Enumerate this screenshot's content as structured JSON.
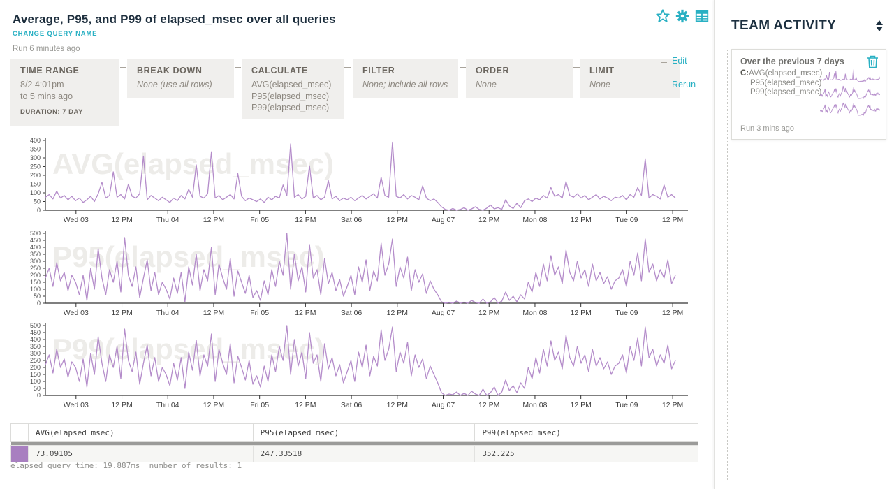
{
  "header": {
    "title": "Average, P95, and P99 of elapsed_msec over all queries",
    "change_query_name": "CHANGE QUERY NAME",
    "run_ago": "Run 6 minutes ago",
    "edit": "Edit",
    "rerun": "Rerun"
  },
  "toolbar": {
    "blocks": [
      {
        "label": "TIME RANGE",
        "lines": [
          "8/2 4:01pm",
          "to 5 mins ago"
        ],
        "footnote": "DURATION: 7 DAY",
        "italic": false
      },
      {
        "label": "BREAK DOWN",
        "lines": [
          "None (use all rows)"
        ],
        "italic": true
      },
      {
        "label": "CALCULATE",
        "lines": [
          "AVG(elapsed_msec)",
          "P95(elapsed_msec)",
          "P99(elapsed_msec)"
        ],
        "italic": false
      },
      {
        "label": "FILTER",
        "lines": [
          "None; include all rows"
        ],
        "italic": true
      },
      {
        "label": "ORDER",
        "lines": [
          "None"
        ],
        "italic": true
      },
      {
        "label": "LIMIT",
        "lines": [
          "None"
        ],
        "italic": true
      }
    ]
  },
  "sidebar": {
    "title": "TEAM ACTIVITY",
    "card": {
      "title": "Over the previous 7 days",
      "calc_prefix": "C:",
      "calc_lines": [
        "AVG(elapsed_msec)",
        "P95(elapsed_msec)",
        "P99(elapsed_msec)"
      ],
      "run_ago": "Run 3 mins ago"
    }
  },
  "table": {
    "columns": [
      "AVG(elapsed_msec)",
      "P95(elapsed_msec)",
      "P99(elapsed_msec)"
    ],
    "rows": [
      {
        "swatch_color": "#a87fc0",
        "values": [
          "73.09105",
          "247.33518",
          "352.225"
        ]
      }
    ]
  },
  "status_line": "elapsed query time: 19.887ms  number of results: 1",
  "colors": {
    "accent_teal": "#29b0c3",
    "title_navy": "#1d3040",
    "series_purple": "#b48cca",
    "watermark_gray": "#edece9",
    "swatch_purple": "#a87fc0"
  },
  "chart_data": {
    "type": "line",
    "x_start_label": "8/2 4:01pm",
    "x_total_hours": 168,
    "x_tick_hours": [
      8,
      20,
      32,
      44,
      56,
      68,
      80,
      92,
      104,
      116,
      128,
      140,
      152,
      164
    ],
    "x_tick_labels": [
      "Wed 03",
      "12 PM",
      "Thu 04",
      "12 PM",
      "Fri 05",
      "12 PM",
      "Sat 06",
      "12 PM",
      "Aug 07",
      "12 PM",
      "Mon 08",
      "12 PM",
      "Tue 09",
      "12 PM"
    ],
    "grid": false,
    "legend": "none",
    "series_color": "#b48cca",
    "charts": [
      {
        "watermark": "AVG(elapsed_msec)",
        "name": "AVG(elapsed_msec)",
        "ylim": [
          0,
          400
        ],
        "ystep": 50,
        "values": [
          75,
          90,
          65,
          110,
          70,
          85,
          60,
          80,
          55,
          70,
          45,
          60,
          80,
          50,
          95,
          160,
          70,
          85,
          220,
          75,
          90,
          65,
          150,
          80,
          70,
          95,
          310,
          60,
          85,
          70,
          55,
          75,
          60,
          45,
          70,
          55,
          85,
          65,
          120,
          75,
          260,
          80,
          70,
          95,
          335,
          70,
          85,
          60,
          75,
          90,
          65,
          210,
          80,
          55,
          70,
          60,
          50,
          65,
          45,
          75,
          60,
          80,
          70,
          145,
          85,
          380,
          75,
          90,
          65,
          80,
          255,
          70,
          85,
          60,
          75,
          170,
          65,
          80,
          55,
          70,
          60,
          75,
          55,
          70,
          85,
          65,
          80,
          95,
          70,
          190,
          85,
          75,
          390,
          80,
          70,
          90,
          65,
          85,
          75,
          60,
          140,
          70,
          55,
          65,
          45,
          20,
          5,
          0,
          10,
          0,
          5,
          15,
          0,
          8,
          20,
          5,
          0,
          12,
          30,
          8,
          15,
          5,
          60,
          25,
          10,
          40,
          15,
          55,
          65,
          50,
          70,
          60,
          85,
          70,
          130,
          80,
          90,
          70,
          165,
          85,
          75,
          95,
          70,
          85,
          60,
          75,
          90,
          65,
          80,
          70,
          55,
          75,
          70,
          85,
          60,
          90,
          75,
          130,
          85,
          295,
          70,
          90,
          80,
          65,
          145,
          75,
          90,
          70
        ]
      },
      {
        "watermark": "P95(elapsed_msec)",
        "name": "P95(elapsed_msec)",
        "ylim": [
          0,
          500
        ],
        "ystep": 50,
        "values": [
          180,
          250,
          120,
          290,
          160,
          220,
          90,
          200,
          150,
          60,
          200,
          20,
          250,
          100,
          390,
          180,
          60,
          240,
          150,
          300,
          80,
          470,
          200,
          120,
          260,
          40,
          180,
          310,
          90,
          220,
          60,
          150,
          100,
          30,
          180,
          70,
          220,
          10,
          260,
          130,
          350,
          90,
          240,
          160,
          400,
          60,
          280,
          180,
          100,
          320,
          50,
          230,
          150,
          70,
          200,
          40,
          90,
          20,
          160,
          60,
          240,
          120,
          300,
          200,
          500,
          100,
          350,
          160,
          260,
          80,
          420,
          180,
          240,
          60,
          320,
          140,
          220,
          90,
          170,
          50,
          120,
          200,
          60,
          260,
          150,
          310,
          90,
          230,
          160,
          430,
          200,
          280,
          460,
          120,
          260,
          180,
          330,
          90,
          240,
          150,
          210,
          70,
          160,
          100,
          60,
          10,
          0,
          5,
          0,
          15,
          0,
          8,
          0,
          20,
          5,
          0,
          30,
          0,
          10,
          40,
          0,
          15,
          80,
          20,
          50,
          10,
          60,
          30,
          150,
          80,
          220,
          120,
          280,
          160,
          340,
          200,
          260,
          140,
          380,
          220,
          160,
          300,
          180,
          240,
          120,
          280,
          160,
          220,
          140,
          190,
          100,
          160,
          180,
          240,
          120,
          300,
          200,
          360,
          160,
          460,
          220,
          280,
          160,
          240,
          180,
          310,
          140,
          200
        ]
      },
      {
        "watermark": "P99(elapsed_msec)",
        "name": "P99(elapsed_msec)",
        "ylim": [
          0,
          500
        ],
        "ystep": 50,
        "values": [
          220,
          290,
          160,
          330,
          200,
          260,
          130,
          240,
          200,
          100,
          260,
          60,
          300,
          150,
          420,
          230,
          100,
          290,
          200,
          350,
          120,
          475,
          250,
          170,
          310,
          80,
          230,
          360,
          140,
          270,
          100,
          200,
          150,
          70,
          230,
          110,
          270,
          50,
          310,
          180,
          395,
          140,
          290,
          210,
          440,
          100,
          330,
          230,
          150,
          370,
          90,
          280,
          200,
          110,
          250,
          80,
          140,
          60,
          210,
          100,
          290,
          170,
          350,
          250,
          500,
          150,
          400,
          210,
          310,
          120,
          450,
          230,
          290,
          100,
          370,
          190,
          270,
          140,
          220,
          90,
          170,
          250,
          100,
          310,
          200,
          360,
          140,
          280,
          210,
          470,
          250,
          330,
          490,
          170,
          310,
          230,
          380,
          140,
          290,
          200,
          260,
          120,
          210,
          150,
          90,
          20,
          0,
          10,
          5,
          25,
          0,
          15,
          0,
          30,
          10,
          0,
          45,
          0,
          20,
          60,
          0,
          25,
          110,
          35,
          70,
          20,
          90,
          50,
          200,
          120,
          270,
          160,
          330,
          210,
          390,
          250,
          310,
          190,
          430,
          270,
          210,
          350,
          230,
          290,
          170,
          330,
          210,
          270,
          190,
          240,
          150,
          210,
          230,
          290,
          160,
          350,
          250,
          410,
          210,
          490,
          270,
          330,
          210,
          290,
          230,
          360,
          190,
          250
        ]
      }
    ]
  }
}
